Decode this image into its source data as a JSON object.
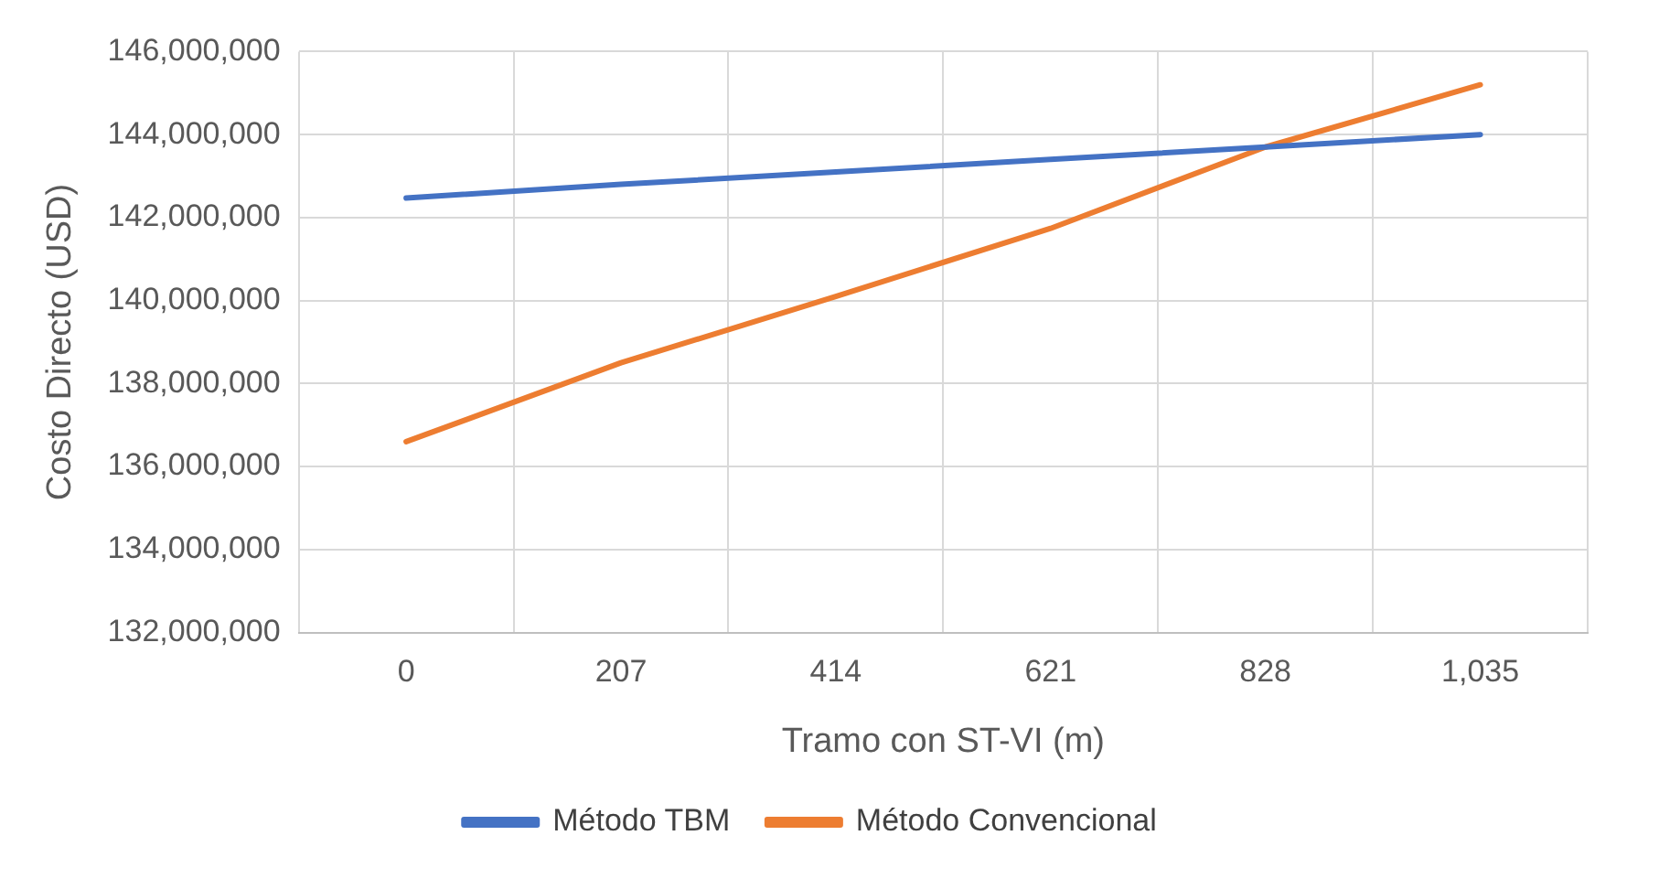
{
  "chart_data": {
    "type": "line",
    "xlabel": "Tramo con ST-VI (m)",
    "ylabel": "Costo Directo (USD)",
    "categories": [
      "0",
      "207",
      "414",
      "621",
      "828",
      "1,035"
    ],
    "series": [
      {
        "name": "Método TBM",
        "color": "#4472c4",
        "values": [
          142470000,
          142800000,
          143100000,
          143400000,
          143700000,
          144000000
        ]
      },
      {
        "name": "Método Convencional",
        "color": "#ed7d31",
        "values": [
          136600000,
          138500000,
          140100000,
          141740000,
          143700000,
          145200000
        ]
      }
    ],
    "ylim": [
      132000000,
      146000000
    ],
    "yticks": [
      {
        "value": 132000000,
        "label": "132,000,000"
      },
      {
        "value": 134000000,
        "label": "134,000,000"
      },
      {
        "value": 136000000,
        "label": "136,000,000"
      },
      {
        "value": 138000000,
        "label": "138,000,000"
      },
      {
        "value": 140000000,
        "label": "140,000,000"
      },
      {
        "value": 142000000,
        "label": "142,000,000"
      },
      {
        "value": 144000000,
        "label": "144,000,000"
      },
      {
        "value": 146000000,
        "label": "146,000,000"
      }
    ],
    "grid": true,
    "legend": "bottom",
    "marker": "none",
    "line_style": "solid"
  }
}
